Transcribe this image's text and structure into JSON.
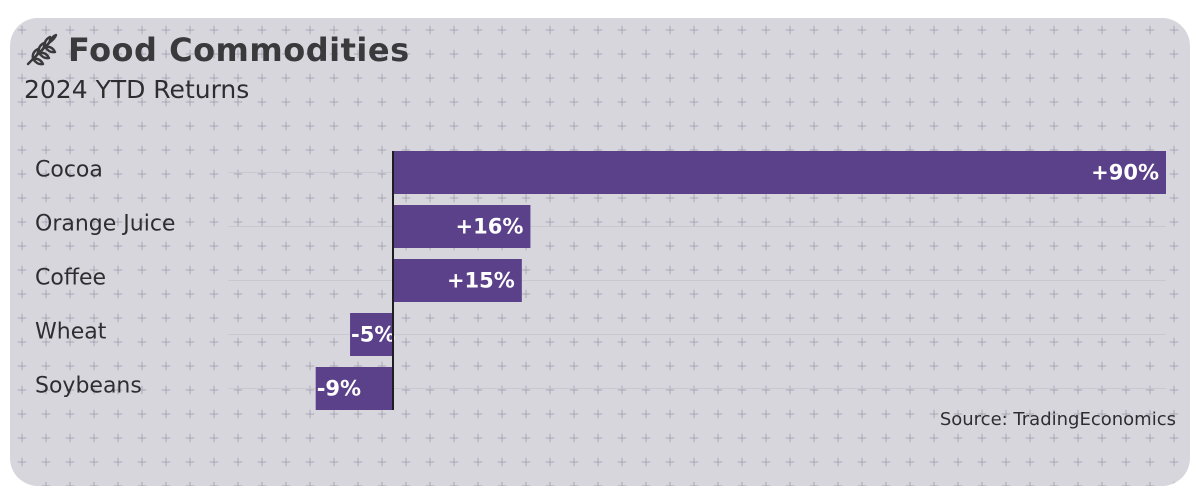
{
  "header": {
    "icon": "wheat-icon",
    "title": "Food Commodities",
    "subtitle": "2024 YTD Returns"
  },
  "footer": {
    "source": "Source: TradingEconomics"
  },
  "colors": {
    "bar": "#5b408a",
    "card_background": "#e6e5ea",
    "axis": "#1e1e22"
  },
  "chart_data": {
    "type": "bar",
    "orientation": "horizontal",
    "categories": [
      "Cocoa",
      "Orange Juice",
      "Coffee",
      "Wheat",
      "Soybeans"
    ],
    "values": [
      90,
      16,
      15,
      -5,
      -9
    ],
    "value_labels": [
      "+90%",
      "+16%",
      "+15%",
      "-5%",
      "-9%"
    ],
    "unit": "%",
    "xlim": [
      -19.5,
      90
    ],
    "grid": false,
    "legend": "none"
  }
}
